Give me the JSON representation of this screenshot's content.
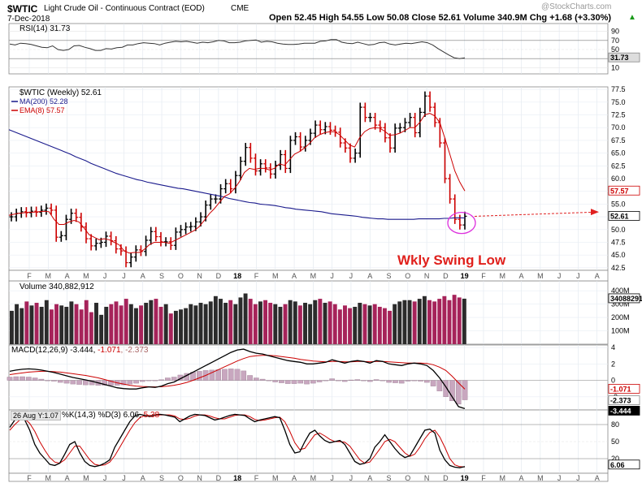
{
  "header": {
    "symbol": "$WTIC",
    "name": "Light Crude Oil - Continuous Contract (EOD)",
    "exchange": "CME",
    "date": "7-Dec-2018",
    "watermark": "@StockCharts.com",
    "ohlc_text": "Open 52.45   High 54.55   Low 50.08   Close 52.61   Volume 340.9M   Chg +1.68 (+3.30%)",
    "chg_arrow": "▲"
  },
  "rsi": {
    "label": "RSI(14) 31.73",
    "ticks": [
      "90",
      "70",
      "50",
      "30",
      "10"
    ],
    "last_label": "31.73"
  },
  "price": {
    "label": "$WTIC (Weekly) 52.61",
    "ma_label": "MA(200) 52.28",
    "ema_label": "EMA(8) 57.57",
    "ticks": [
      "77.5",
      "75.0",
      "72.5",
      "70.0",
      "67.5",
      "65.0",
      "62.5",
      "60.0",
      "57.5",
      "55.0",
      "52.5",
      "50.0",
      "47.5",
      "45.0",
      "42.5"
    ],
    "last_close_label": "52.61",
    "ema_last_label": "57.57",
    "annotation": "Wkly Swing Low"
  },
  "volume": {
    "label": "Volume 340,882,912",
    "ticks": [
      "400M",
      "300M",
      "200M",
      "100M"
    ],
    "last_label": "340882912"
  },
  "macd": {
    "label_prefix": "MACD(12,26,9) -3.444, ",
    "signal": "-1.071",
    "hist": ", -2.373",
    "ticks": [
      "4",
      "2",
      "0",
      "-2"
    ],
    "last_labels": [
      "-1.071",
      "-2.373",
      "-3.444"
    ]
  },
  "stoch": {
    "hover": "26 Aug Y:1.07",
    "label_prefix": "%K(14,3) %D(3) 6.06, ",
    "d_value": "5.38",
    "ticks": [
      "80",
      "50",
      "20"
    ],
    "last_label": "6.06"
  },
  "x_axis": {
    "labels": [
      "F",
      "M",
      "A",
      "M",
      "J",
      "J",
      "A",
      "S",
      "O",
      "N",
      "D",
      "18",
      "F",
      "M",
      "A",
      "M",
      "J",
      "J",
      "A",
      "S",
      "O",
      "N",
      "D",
      "19",
      "F",
      "M",
      "A",
      "M",
      "J",
      "J",
      "A"
    ]
  },
  "colors": {
    "price_up": "#000000",
    "price_down": "#cc0000",
    "ma200": "#1a1a8c",
    "ema8": "#cc0000",
    "vol_up": "#2b2b2b",
    "vol_down": "#a6235a",
    "annotation": "#e0201c",
    "circle": "#dd30dd",
    "projection": "#e02020"
  },
  "chart_data": [
    {
      "type": "line",
      "title": "RSI(14) 31.73",
      "ylim": [
        0,
        100
      ],
      "series": [
        {
          "name": "RSI(14)",
          "values": [
            62,
            60,
            64,
            63,
            61,
            58,
            55,
            54,
            58,
            50,
            48,
            50,
            58,
            59,
            55,
            52,
            48,
            48,
            52,
            51,
            54,
            55,
            60,
            60,
            63,
            65,
            64,
            63,
            60,
            64,
            66,
            68,
            67,
            68,
            66,
            64,
            66,
            65,
            67,
            70,
            69,
            65,
            65,
            66,
            69,
            70,
            71,
            66,
            68,
            67,
            64,
            62,
            61,
            61,
            62,
            64,
            64,
            64,
            68,
            69,
            72,
            72,
            66,
            64,
            63,
            66,
            63,
            60,
            61,
            65,
            66,
            62,
            60,
            62,
            64,
            63,
            65,
            67,
            65,
            60,
            52,
            45,
            38,
            32,
            30,
            31.73
          ]
        }
      ]
    },
    {
      "type": "line",
      "title": "$WTIC (Weekly) 52.61",
      "ylim": [
        42,
        78
      ],
      "series": [
        {
          "name": "$WTIC",
          "values": [
            52.5,
            53.2,
            53.5,
            53.3,
            53.6,
            53.4,
            53.8,
            54.2,
            53.8,
            48.5,
            48.8,
            52,
            53.2,
            52.4,
            50.5,
            48.2,
            46.8,
            47.3,
            47.5,
            48.7,
            47.8,
            46.2,
            45.8,
            43.5,
            44.6,
            46,
            45.7,
            47.9,
            49.6,
            48.6,
            47.6,
            47.6,
            46.9,
            49.5,
            50,
            50.5,
            50.6,
            51.5,
            52.5,
            54.8,
            56,
            56,
            58,
            59,
            58,
            60.6,
            63.4,
            66.1,
            64,
            61.5,
            62.9,
            62.1,
            60.9,
            62.6,
            64.7,
            62,
            67.5,
            68.2,
            66.2,
            67.5,
            68.9,
            70.5,
            69.6,
            70.2,
            69.5,
            69.1,
            67,
            66,
            64,
            65,
            74,
            72,
            72,
            70.5,
            70,
            68,
            66,
            69.9,
            70,
            71,
            72,
            69,
            73,
            76.2,
            74,
            71,
            67,
            60,
            56,
            52,
            50.9,
            52.61
          ]
        },
        {
          "name": "MA(200)",
          "values": [
            69.6,
            69.2,
            68.8,
            68.4,
            68,
            67.6,
            67.2,
            66.8,
            66.4,
            66,
            65.6,
            65.2,
            64.8,
            64.3,
            63.9,
            63.5,
            63,
            62.6,
            62.2,
            61.8,
            61.4,
            61,
            60.7,
            60.4,
            60.1,
            59.8,
            59.6,
            59.3,
            59.1,
            58.9,
            58.7,
            58.5,
            58.3,
            58.1,
            58,
            57.8,
            57.6,
            57.4,
            57.2,
            57,
            56.8,
            56.6,
            56.4,
            56.1,
            55.9,
            55.7,
            55.5,
            55.3,
            55.2,
            55,
            54.9,
            54.8,
            54.7,
            54.5,
            54.3,
            54.2,
            54,
            53.9,
            53.8,
            53.7,
            53.6,
            53.5,
            53.3,
            53.1,
            53,
            52.9,
            52.8,
            52.7,
            52.6,
            52.4,
            52.3,
            52.2,
            52.1,
            52.1,
            52,
            52,
            52,
            52,
            52,
            52,
            52.1,
            52.1,
            52.1,
            52.1,
            52.1,
            52.2,
            52.2,
            52.3,
            52.3,
            52.28
          ]
        },
        {
          "name": "EMA(8)",
          "values": [
            52.8,
            53,
            53.2,
            53.3,
            53.4,
            53.4,
            53.5,
            53.6,
            53.5,
            52,
            51,
            51,
            51.5,
            51.8,
            51.5,
            50.3,
            49,
            48.5,
            48,
            48.2,
            48,
            47.5,
            47,
            45.8,
            45.4,
            45.5,
            45.5,
            46.1,
            47,
            47.5,
            47.5,
            47.5,
            47.3,
            47.8,
            48.3,
            48.8,
            49.3,
            49.8,
            50.6,
            51.8,
            53.1,
            54.1,
            55.3,
            56.5,
            57,
            58,
            59.4,
            61.2,
            62,
            61.8,
            62,
            62,
            61.7,
            62,
            62.9,
            62.6,
            63.7,
            64.8,
            65.3,
            66,
            66.9,
            68,
            68.6,
            69,
            69.2,
            69.2,
            68.6,
            67.6,
            66.6,
            66.2,
            68,
            69.2,
            69.8,
            70,
            69.9,
            69.3,
            68.5,
            68.6,
            68.9,
            69.4,
            70,
            70,
            71,
            72.5,
            72.8,
            72.3,
            71,
            68,
            64.8,
            61.5,
            59.3,
            57.57
          ]
        }
      ]
    },
    {
      "type": "bar",
      "title": "Volume 340,882,912",
      "ylabel": "Volume",
      "ylim": [
        0,
        450000000
      ],
      "series": [
        {
          "name": "Volume",
          "values": [
            250000000.0,
            300000000.0,
            270000000.0,
            320000000.0,
            290000000.0,
            310000000.0,
            280000000.0,
            330000000.0,
            260000000.0,
            300000000.0,
            290000000.0,
            280000000.0,
            320000000.0,
            300000000.0,
            260000000.0,
            330000000.0,
            240000000.0,
            310000000.0,
            220000000.0,
            280000000.0,
            300000000.0,
            320000000.0,
            290000000.0,
            340000000.0,
            300000000.0,
            270000000.0,
            290000000.0,
            310000000.0,
            330000000.0,
            340000000.0,
            280000000.0,
            300000000.0,
            230000000.0,
            250000000.0,
            260000000.0,
            270000000.0,
            300000000.0,
            290000000.0,
            310000000.0,
            300000000.0,
            320000000.0,
            360000000.0,
            340000000.0,
            310000000.0,
            330000000.0,
            300000000.0,
            350000000.0,
            380000000.0,
            340000000.0,
            300000000.0,
            320000000.0,
            330000000.0,
            310000000.0,
            300000000.0,
            280000000.0,
            300000000.0,
            330000000.0,
            320000000.0,
            290000000.0,
            310000000.0,
            300000000.0,
            330000000.0,
            340000000.0,
            310000000.0,
            320000000.0,
            300000000.0,
            260000000.0,
            290000000.0,
            270000000.0,
            280000000.0,
            310000000.0,
            300000000.0,
            290000000.0,
            300000000.0,
            280000000.0,
            270000000.0,
            250000000.0,
            300000000.0,
            320000000.0,
            330000000.0,
            330000000.0,
            320000000.0,
            340000000.0,
            360000000.0,
            330000000.0,
            320000000.0,
            340000000.0,
            360000000.0,
            330000000.0,
            370000000.0,
            350000000.0,
            340900000.0
          ]
        }
      ]
    },
    {
      "type": "line",
      "title": "MACD(12,26,9) -3.444, -1.071, -2.373",
      "ylim": [
        -3.6,
        4.3
      ],
      "series": [
        {
          "name": "MACD",
          "values": [
            1.1,
            1.25,
            1.35,
            1.4,
            1.35,
            1.25,
            1.1,
            0.95,
            0.75,
            0.55,
            0.35,
            0.2,
            0.05,
            -0.1,
            -0.3,
            -0.5,
            -0.7,
            -0.9,
            -1.0,
            -1.05,
            -1.05,
            -0.9,
            -0.8,
            -0.85,
            -0.7,
            -0.4,
            -0.2,
            0.2,
            0.6,
            1.0,
            1.4,
            1.8,
            2.2,
            2.6,
            3.0,
            3.4,
            3.7,
            3.8,
            3.5,
            3.3,
            3.2,
            3.0,
            2.8,
            2.6,
            2.4,
            2.3,
            2.2,
            2.0,
            2.0,
            2.1,
            2.2,
            2.5,
            2.3,
            2.1,
            2.3,
            2.4,
            2.3,
            2.1,
            2.4,
            2.3,
            2.0,
            1.9,
            1.8,
            2.0,
            2.1,
            2.0,
            1.8,
            1.2,
            0.3,
            -0.8,
            -2.0,
            -3.2,
            -3.444
          ]
        },
        {
          "name": "Signal",
          "values": [
            0.7,
            0.8,
            0.9,
            1.0,
            1.05,
            1.1,
            1.1,
            1.05,
            1.0,
            0.9,
            0.8,
            0.7,
            0.6,
            0.45,
            0.3,
            0.1,
            -0.1,
            -0.3,
            -0.45,
            -0.6,
            -0.7,
            -0.75,
            -0.78,
            -0.8,
            -0.78,
            -0.7,
            -0.6,
            -0.45,
            -0.25,
            0.0,
            0.3,
            0.6,
            0.95,
            1.3,
            1.65,
            2.0,
            2.35,
            2.65,
            2.9,
            3.0,
            3.05,
            3.05,
            3.0,
            2.9,
            2.8,
            2.7,
            2.55,
            2.45,
            2.35,
            2.3,
            2.25,
            2.3,
            2.3,
            2.25,
            2.25,
            2.3,
            2.3,
            2.25,
            2.3,
            2.3,
            2.25,
            2.2,
            2.15,
            2.1,
            2.1,
            2.1,
            2.05,
            1.9,
            1.6,
            1.2,
            0.5,
            -0.3,
            -1.071
          ]
        }
      ]
    },
    {
      "type": "line",
      "title": "%K(14,3) %D(3) 6.06, 5.38",
      "ylim": [
        0,
        100
      ],
      "series": [
        {
          "name": "%K",
          "values": [
            75,
            88,
            92,
            88,
            70,
            45,
            30,
            20,
            10,
            8,
            12,
            28,
            45,
            50,
            30,
            15,
            8,
            6,
            8,
            12,
            18,
            40,
            55,
            70,
            85,
            95,
            98,
            96,
            94,
            97,
            98,
            97,
            95,
            93,
            85,
            90,
            95,
            98,
            97,
            96,
            92,
            88,
            90,
            93,
            96,
            98,
            97,
            96,
            90,
            85,
            88,
            90,
            92,
            94,
            92,
            70,
            45,
            30,
            32,
            50,
            65,
            70,
            60,
            52,
            48,
            50,
            52,
            45,
            30,
            15,
            10,
            12,
            20,
            40,
            50,
            62,
            50,
            38,
            28,
            22,
            25,
            40,
            55,
            70,
            72,
            65,
            35,
            18,
            8,
            5,
            4,
            6.06
          ]
        },
        {
          "name": "%D",
          "values": [
            70,
            80,
            88,
            90,
            82,
            68,
            50,
            35,
            22,
            14,
            12,
            18,
            30,
            42,
            42,
            30,
            18,
            10,
            8,
            9,
            14,
            25,
            40,
            55,
            70,
            83,
            92,
            96,
            96,
            96,
            97,
            97,
            97,
            95,
            90,
            89,
            91,
            95,
            97,
            97,
            95,
            92,
            90,
            90,
            93,
            96,
            97,
            97,
            94,
            89,
            87,
            88,
            90,
            92,
            93,
            85,
            68,
            48,
            36,
            38,
            50,
            62,
            65,
            60,
            54,
            50,
            50,
            49,
            42,
            30,
            18,
            12,
            14,
            25,
            37,
            50,
            54,
            50,
            40,
            30,
            24,
            28,
            40,
            55,
            66,
            70,
            58,
            40,
            20,
            9,
            6,
            5.38
          ]
        }
      ]
    }
  ]
}
